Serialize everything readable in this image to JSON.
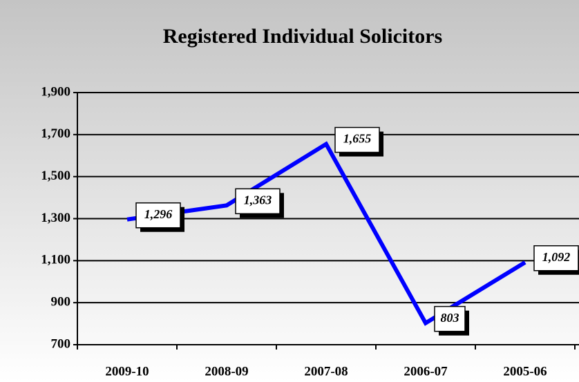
{
  "chart_data": {
    "type": "line",
    "title": "Registered Individual Solicitors",
    "categories": [
      "2009-10",
      "2008-09",
      "2007-08",
      "2006-07",
      "2005-06"
    ],
    "series": [
      {
        "name": "Registered Individual Solicitors",
        "color": "#0000ff",
        "values": [
          1296,
          1363,
          1655,
          803,
          1092
        ],
        "value_labels": [
          "1,296",
          "1,363",
          "1,655",
          "803",
          "1,092"
        ]
      }
    ],
    "ylim": [
      700,
      1900
    ],
    "yticks": [
      {
        "value": 700,
        "label": "700"
      },
      {
        "value": 900,
        "label": "900"
      },
      {
        "value": 1100,
        "label": "1,100"
      },
      {
        "value": 1300,
        "label": "1,300"
      },
      {
        "value": 1500,
        "label": "1,500"
      },
      {
        "value": 1700,
        "label": "1,700"
      },
      {
        "value": 1900,
        "label": "1,900"
      }
    ],
    "grid": true
  }
}
